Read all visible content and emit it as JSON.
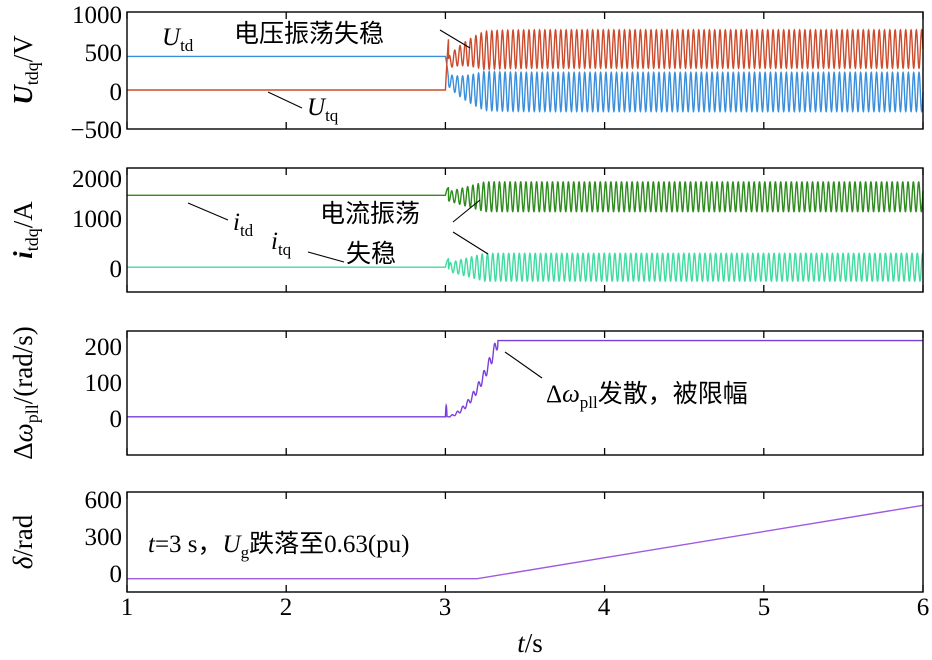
{
  "chart_data": {
    "type": "line",
    "xlabel": "t/s",
    "xlim": [
      1,
      6
    ],
    "xticks": [
      "1",
      "2",
      "3",
      "4",
      "5",
      "6"
    ],
    "colors": {
      "Utd": "#3a8fdc",
      "Utq": "#cc4b2c",
      "itd": "#2e8b1e",
      "itq": "#3fdca0",
      "dw": "#7b3fd9",
      "delta": "#a05ae0"
    },
    "panels": [
      {
        "id": "udq",
        "ylabel": "U_tdq/V",
        "ylim": [
          -500,
          1000
        ],
        "yticks": [
          "1000",
          "500",
          "0",
          "−500"
        ],
        "series": [
          {
            "name": "U_td",
            "before": 430,
            "osc_mean": -25,
            "osc_amp": 250
          },
          {
            "name": "U_tq",
            "before": 0,
            "osc_mean": 525,
            "osc_amp": 245
          }
        ],
        "annotations": [
          "U_td",
          "电压振荡失稳",
          "U_tq"
        ]
      },
      {
        "id": "idq",
        "ylabel": "i_tdq/A",
        "ylim": [
          -500,
          2000
        ],
        "yticks": [
          "2000",
          "1000",
          "0"
        ],
        "series": [
          {
            "name": "i_td",
            "before": 1450,
            "osc_mean": 1420,
            "osc_amp": 300
          },
          {
            "name": "i_tq",
            "before": 0,
            "osc_mean": 0,
            "osc_amp": 280
          }
        ],
        "annotations": [
          "i_td",
          "i_tq",
          "电流振荡",
          "失稳"
        ]
      },
      {
        "id": "dw",
        "ylabel": "Δω_pll/(rad/s)",
        "ylim": [
          -100,
          225
        ],
        "yticks": [
          "200",
          "100",
          "0"
        ],
        "series": [
          {
            "name": "Δω_pll",
            "before": 0,
            "limit": 200
          }
        ],
        "annotations": [
          "Δω_pll发散，被限幅"
        ]
      },
      {
        "id": "delta",
        "ylabel": "δ/rad",
        "ylim": [
          -100,
          650
        ],
        "yticks": [
          "600",
          "300",
          "0"
        ],
        "series": [
          {
            "name": "δ",
            "before": 0,
            "points": [
              [
                1,
                0
              ],
              [
                3.2,
                0
              ],
              [
                6,
                550
              ]
            ]
          }
        ],
        "annotations": [
          "t=3 s，U_g跌落至0.63(pu)"
        ]
      }
    ]
  }
}
